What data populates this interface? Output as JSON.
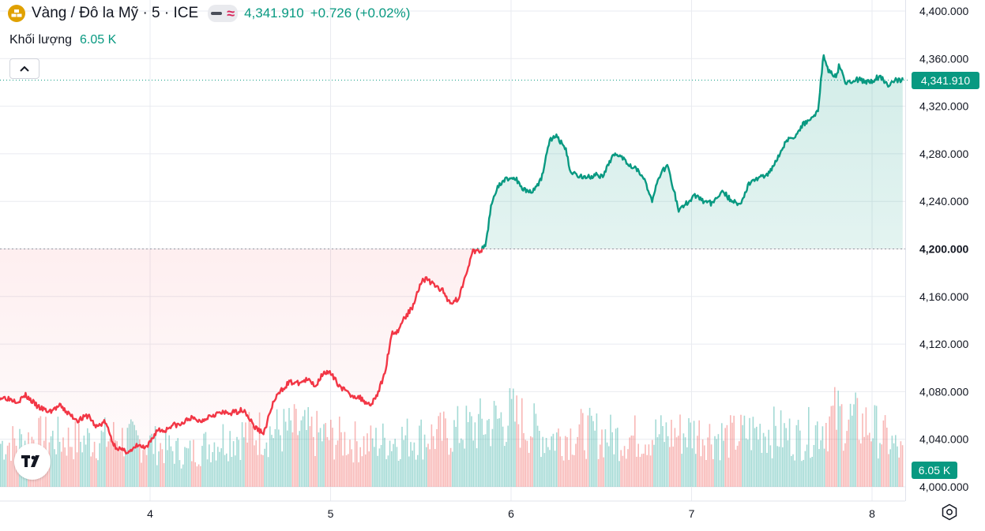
{
  "legend": {
    "symbol_icon": "gold-bars-icon",
    "title": "Vàng / Đô la Mỹ · 5 · ICE",
    "last_price": "4,341.910",
    "change": "+0.726 (+0.02%)"
  },
  "volume_legend": {
    "label": "Khối lượng",
    "value": "6.05 K"
  },
  "price_badge": "4,341.910",
  "volume_badge": "6.05 K",
  "colors": {
    "up": "#089981",
    "down": "#f23645",
    "grid": "#e9ebf0",
    "text": "#131722",
    "symbol": "#e0a100"
  },
  "icons": [
    "gold-bars-icon",
    "chevron-up-icon",
    "tradingview-logo-icon",
    "settings-icon"
  ],
  "chart_data": {
    "type": "line",
    "baseline": 4200,
    "ylim": [
      4000,
      4400
    ],
    "xlim": [
      3.2,
      8.2
    ],
    "yticks": [
      4000,
      4040,
      4080,
      4120,
      4160,
      4200,
      4240,
      4280,
      4320,
      4360,
      4400
    ],
    "ytick_labels": [
      "4,000.000",
      "4,040.000",
      "4,080.000",
      "4,120.000",
      "4,160.000",
      "4,200.000",
      "4,240.000",
      "4,280.000",
      "4,320.000",
      "4,360.000",
      "4,400.000"
    ],
    "xticks": [
      4,
      5,
      6,
      7,
      8
    ],
    "xtick_labels": [
      "4",
      "5",
      "6",
      "7",
      "8"
    ],
    "grid": true,
    "series": [
      {
        "x": [
          3.2,
          3.27,
          3.31,
          3.38,
          3.44,
          3.5,
          3.56,
          3.6,
          3.66,
          3.7,
          3.75,
          3.8,
          3.85,
          3.9,
          3.93,
          3.98,
          4.04,
          4.08,
          4.12,
          4.17,
          4.22,
          4.28,
          4.33,
          4.38,
          4.45,
          4.52,
          4.58,
          4.63,
          4.68,
          4.72,
          4.77,
          4.82,
          4.87,
          4.92,
          4.96,
          5.0,
          5.05,
          5.1,
          5.16,
          5.22,
          5.26,
          5.3,
          5.34,
          5.37,
          5.4,
          5.45,
          5.5,
          5.53,
          5.57,
          5.62,
          5.66,
          5.71,
          5.75,
          5.79,
          5.83,
          5.86,
          5.89,
          5.92,
          5.96,
          6.02,
          6.07,
          6.12,
          6.17,
          6.21,
          6.25,
          6.3,
          6.33,
          6.37,
          6.42,
          6.47,
          6.51,
          6.56,
          6.6,
          6.65,
          6.69,
          6.73,
          6.78,
          6.83,
          6.87,
          6.9,
          6.93,
          6.97,
          7.02,
          7.07,
          7.12,
          7.17,
          7.22,
          7.27,
          7.32,
          7.37,
          7.42,
          7.47,
          7.52,
          7.57,
          7.62,
          7.66,
          7.7,
          7.73,
          7.76,
          7.8,
          7.82,
          7.86,
          7.9,
          7.94,
          7.99,
          8.04,
          8.09,
          8.13,
          8.17
        ],
        "y": [
          4075,
          4072,
          4077,
          4067,
          4063,
          4068,
          4060,
          4056,
          4060,
          4050,
          4055,
          4035,
          4030,
          4030,
          4035,
          4032,
          4048,
          4047,
          4052,
          4052,
          4058,
          4055,
          4060,
          4062,
          4062,
          4065,
          4050,
          4045,
          4070,
          4080,
          4088,
          4087,
          4090,
          4085,
          4097,
          4095,
          4085,
          4078,
          4075,
          4069,
          4078,
          4095,
          4130,
          4130,
          4140,
          4150,
          4172,
          4175,
          4170,
          4165,
          4155,
          4158,
          4180,
          4198,
          4198,
          4203,
          4238,
          4250,
          4258,
          4260,
          4250,
          4248,
          4260,
          4290,
          4295,
          4285,
          4265,
          4262,
          4260,
          4262,
          4260,
          4278,
          4280,
          4272,
          4268,
          4262,
          4240,
          4265,
          4270,
          4250,
          4232,
          4238,
          4245,
          4240,
          4238,
          4250,
          4240,
          4238,
          4255,
          4260,
          4262,
          4275,
          4290,
          4295,
          4305,
          4310,
          4315,
          4362,
          4350,
          4345,
          4355,
          4338,
          4343,
          4342,
          4340,
          4345,
          4338,
          4342,
          4341.91
        ]
      }
    ],
    "volume": {
      "last_value": 6.05,
      "unit": "K",
      "x": [
        3.2,
        3.4,
        3.6,
        3.8,
        4.0,
        4.2,
        4.4,
        4.6,
        4.8,
        5.0,
        5.2,
        5.4,
        5.6,
        5.8,
        6.0,
        6.2,
        6.4,
        6.6,
        6.8,
        7.0,
        7.2,
        7.4,
        7.6,
        7.8,
        8.0,
        8.17
      ],
      "values": [
        8,
        9,
        8.5,
        9,
        8,
        6,
        9,
        10,
        10.5,
        9,
        8,
        9,
        9.5,
        11,
        13,
        9,
        10,
        9,
        9.5,
        10,
        9,
        10.5,
        9,
        13,
        11,
        6.05
      ]
    }
  }
}
